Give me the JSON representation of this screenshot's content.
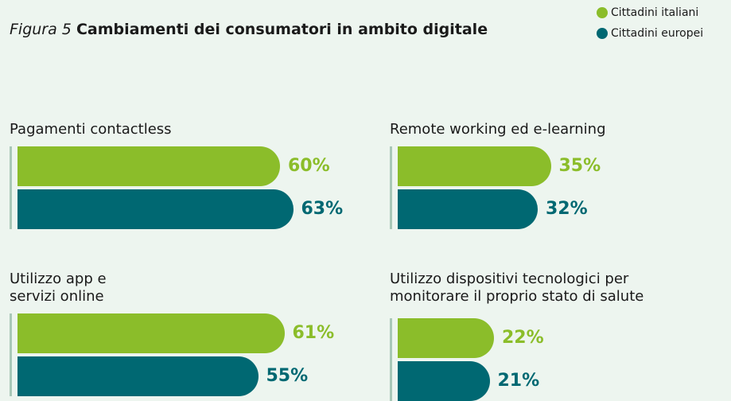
{
  "chart_data": {
    "type": "bar",
    "orientation": "horizontal",
    "title_prefix": "Figura 5",
    "title": "Cambiamenti dei consumatori in ambito digitale",
    "categories": [
      "Pagamenti contactless",
      "Remote working ed e-learning",
      "Utilizzo app e\nservizi online",
      "Utilizzo dispositivi tecnologici per\nmonitorare il proprio stato di salute"
    ],
    "series": [
      {
        "name": "Cittadini italiani",
        "color": "#8bbd2a",
        "values": [
          60,
          35,
          61,
          22
        ],
        "value_labels": [
          "60%",
          "35%",
          "61%",
          "22%"
        ]
      },
      {
        "name": "Cittadini europei",
        "color": "#006872",
        "values": [
          63,
          32,
          55,
          21
        ],
        "value_labels": [
          "63%",
          "32%",
          "55%",
          "21%"
        ]
      }
    ]
  }
}
